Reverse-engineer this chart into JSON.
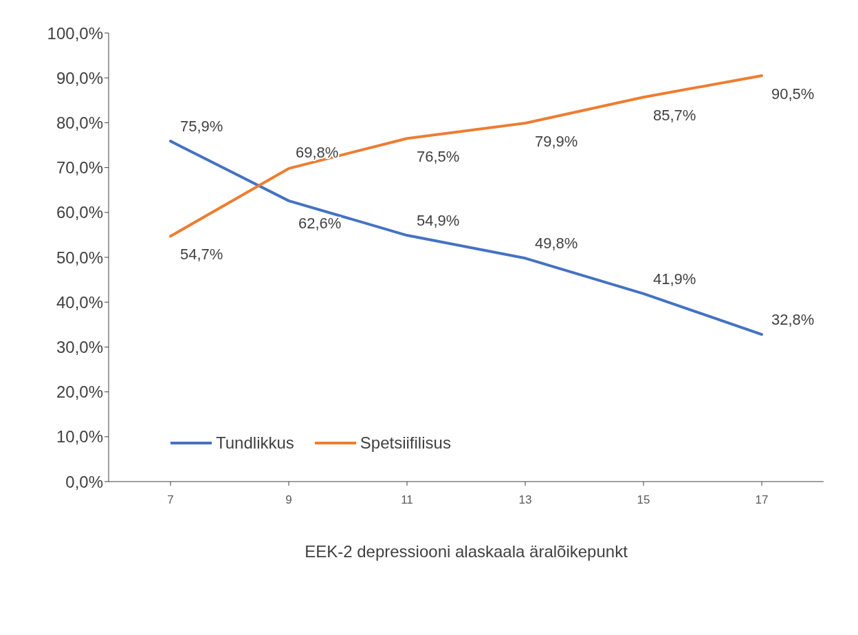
{
  "chart_data": {
    "type": "line",
    "xlabel": "EEK-2 depressiooni alaskaala äralõikepunkt",
    "categories": [
      "7",
      "9",
      "11",
      "13",
      "15",
      "17"
    ],
    "series": [
      {
        "name": "Tundlikkus",
        "color": "#4472c4",
        "values": [
          75.9,
          62.6,
          54.9,
          49.8,
          41.9,
          32.8
        ],
        "value_labels": [
          "75,9%",
          "62,6%",
          "54,9%",
          "49,8%",
          "41,9%",
          "32,8%"
        ]
      },
      {
        "name": "Spetsiifilisus",
        "color": "#ed7d31",
        "values": [
          54.7,
          69.8,
          76.5,
          79.9,
          85.7,
          90.5
        ],
        "value_labels": [
          "54,7%",
          "69,8%",
          "76,5%",
          "79,9%",
          "85,7%",
          "90,5%"
        ]
      }
    ],
    "ylim": [
      0,
      100
    ],
    "yticks": [
      {
        "value": 0,
        "label": "0,0%"
      },
      {
        "value": 10,
        "label": "10,0%"
      },
      {
        "value": 20,
        "label": "20,0%"
      },
      {
        "value": 30,
        "label": "30,0%"
      },
      {
        "value": 40,
        "label": "40,0%"
      },
      {
        "value": 50,
        "label": "50,0%"
      },
      {
        "value": 60,
        "label": "60,0%"
      },
      {
        "value": 70,
        "label": "70,0%"
      },
      {
        "value": 80,
        "label": "80,0%"
      },
      {
        "value": 90,
        "label": "90,0%"
      },
      {
        "value": 100,
        "label": "100,0%"
      }
    ],
    "grid": false,
    "legend": "bottom left",
    "marker": "none",
    "line_style": "solid"
  }
}
